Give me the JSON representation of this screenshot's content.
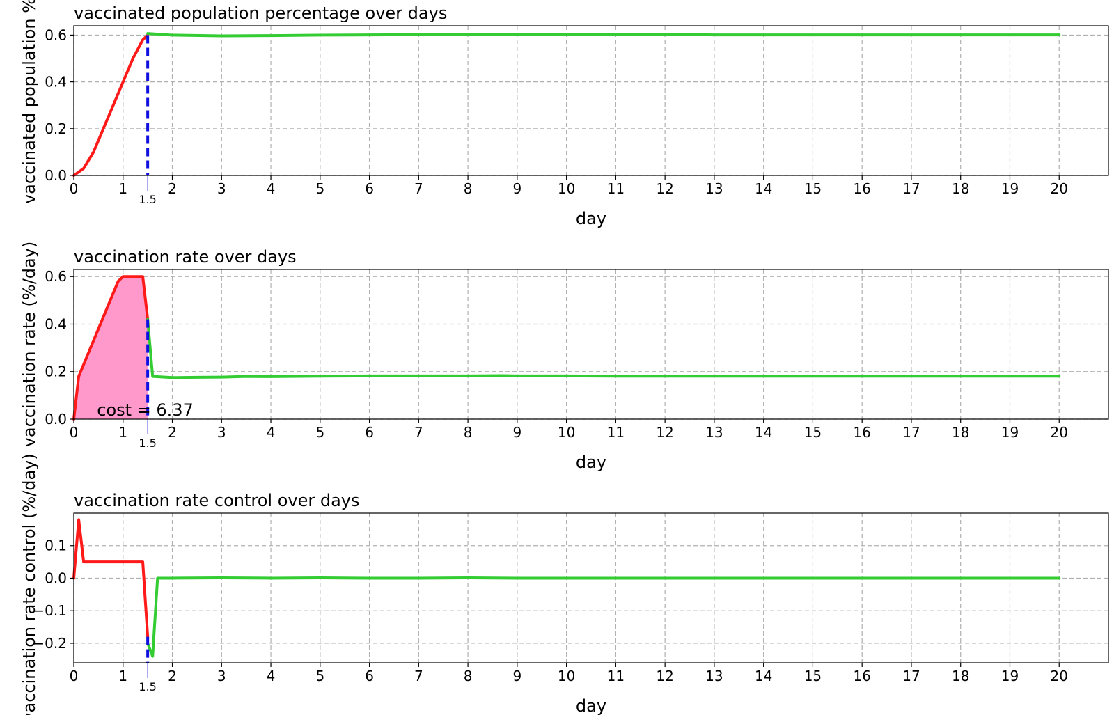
{
  "chart_data": [
    {
      "type": "line",
      "title": "vaccinated population percentage over days",
      "xlabel": "day",
      "ylabel": "vaccinated population %",
      "xlim": [
        0,
        21
      ],
      "ylim": [
        0.0,
        0.64
      ],
      "xticks": [
        0,
        1,
        2,
        3,
        4,
        5,
        6,
        7,
        8,
        9,
        10,
        11,
        12,
        13,
        14,
        15,
        16,
        17,
        18,
        19,
        20
      ],
      "yticks": [
        0.0,
        0.2,
        0.4,
        0.6
      ],
      "ytick_labels": [
        "0.0",
        "0.2",
        "0.4",
        "0.6"
      ],
      "grid": true,
      "vline": {
        "x": 1.5,
        "label": "1.5",
        "color": "#1010e0"
      },
      "series": [
        {
          "color": "#ff1a1a",
          "x": [
            0,
            0.2,
            0.4,
            0.6,
            0.8,
            1.0,
            1.2,
            1.4,
            1.5
          ],
          "y": [
            0.0,
            0.03,
            0.1,
            0.2,
            0.3,
            0.4,
            0.5,
            0.58,
            0.6
          ]
        },
        {
          "color": "#33cc33",
          "x": [
            1.5,
            2,
            3,
            4,
            5,
            6,
            7,
            8,
            9,
            10,
            11,
            12,
            13,
            14,
            15,
            16,
            17,
            18,
            19,
            20
          ],
          "y": [
            0.607,
            0.6,
            0.597,
            0.598,
            0.6,
            0.601,
            0.602,
            0.603,
            0.604,
            0.603,
            0.603,
            0.602,
            0.601,
            0.601,
            0.601,
            0.601,
            0.601,
            0.601,
            0.601,
            0.601
          ]
        }
      ]
    },
    {
      "type": "line",
      "title": "vaccination rate over days",
      "xlabel": "day",
      "ylabel": "vaccination rate (%/day)",
      "xlim": [
        0,
        21
      ],
      "ylim": [
        0.0,
        0.63
      ],
      "xticks": [
        0,
        1,
        2,
        3,
        4,
        5,
        6,
        7,
        8,
        9,
        10,
        11,
        12,
        13,
        14,
        15,
        16,
        17,
        18,
        19,
        20
      ],
      "yticks": [
        0.0,
        0.2,
        0.4,
        0.6
      ],
      "ytick_labels": [
        "0.0",
        "0.2",
        "0.4",
        "0.6"
      ],
      "grid": true,
      "annotation": "cost = 6.37",
      "fill_color": "#ff99cc",
      "vline": {
        "x": 1.5,
        "label": "1.5",
        "color": "#1010e0"
      },
      "series": [
        {
          "color": "#ff1a1a",
          "x": [
            0,
            0.1,
            0.9,
            1.0,
            1.4,
            1.5
          ],
          "y": [
            0.0,
            0.18,
            0.58,
            0.6,
            0.6,
            0.42
          ]
        },
        {
          "color": "#33cc33",
          "x": [
            1.5,
            1.6,
            2,
            2.5,
            3,
            3.5,
            4,
            5,
            6,
            7,
            8,
            8.7,
            9,
            10,
            11,
            12,
            13,
            14,
            15,
            16,
            17,
            18,
            19,
            20
          ],
          "y": [
            0.42,
            0.18,
            0.175,
            0.176,
            0.177,
            0.18,
            0.179,
            0.181,
            0.182,
            0.182,
            0.182,
            0.183,
            0.182,
            0.182,
            0.181,
            0.181,
            0.181,
            0.181,
            0.181,
            0.181,
            0.181,
            0.181,
            0.181,
            0.181
          ]
        }
      ]
    },
    {
      "type": "line",
      "title": "vaccination rate control over days",
      "xlabel": "day",
      "ylabel": "vaccination rate control (%/day)",
      "xlim": [
        0,
        21
      ],
      "ylim": [
        -0.26,
        0.2
      ],
      "xticks": [
        0,
        1,
        2,
        3,
        4,
        5,
        6,
        7,
        8,
        9,
        10,
        11,
        12,
        13,
        14,
        15,
        16,
        17,
        18,
        19,
        20
      ],
      "yticks": [
        -0.2,
        -0.1,
        0.0,
        0.1
      ],
      "ytick_labels": [
        "−0.2",
        "−0.1",
        "0.0",
        "0.1"
      ],
      "grid": true,
      "vline": {
        "x": 1.5,
        "label": "1.5",
        "color": "#1010e0"
      },
      "series": [
        {
          "color": "#ff1a1a",
          "x": [
            0,
            0.1,
            0.2,
            1.4,
            1.5
          ],
          "y": [
            0.0,
            0.18,
            0.05,
            0.05,
            -0.18
          ]
        },
        {
          "color": "#33cc33",
          "x": [
            1.5,
            1.6,
            1.7,
            2,
            3,
            4,
            5,
            6,
            7,
            8,
            9,
            10,
            11,
            12,
            13,
            14,
            15,
            16,
            17,
            18,
            19,
            20
          ],
          "y": [
            -0.2,
            -0.24,
            0.0,
            0.0,
            0.001,
            0.0,
            0.001,
            0.0,
            0.0,
            0.001,
            0.0,
            0.0,
            0.0,
            0.0,
            0.0,
            0.0,
            0.0,
            0.0,
            0.0,
            0.0,
            0.0,
            0.0
          ]
        }
      ]
    }
  ]
}
